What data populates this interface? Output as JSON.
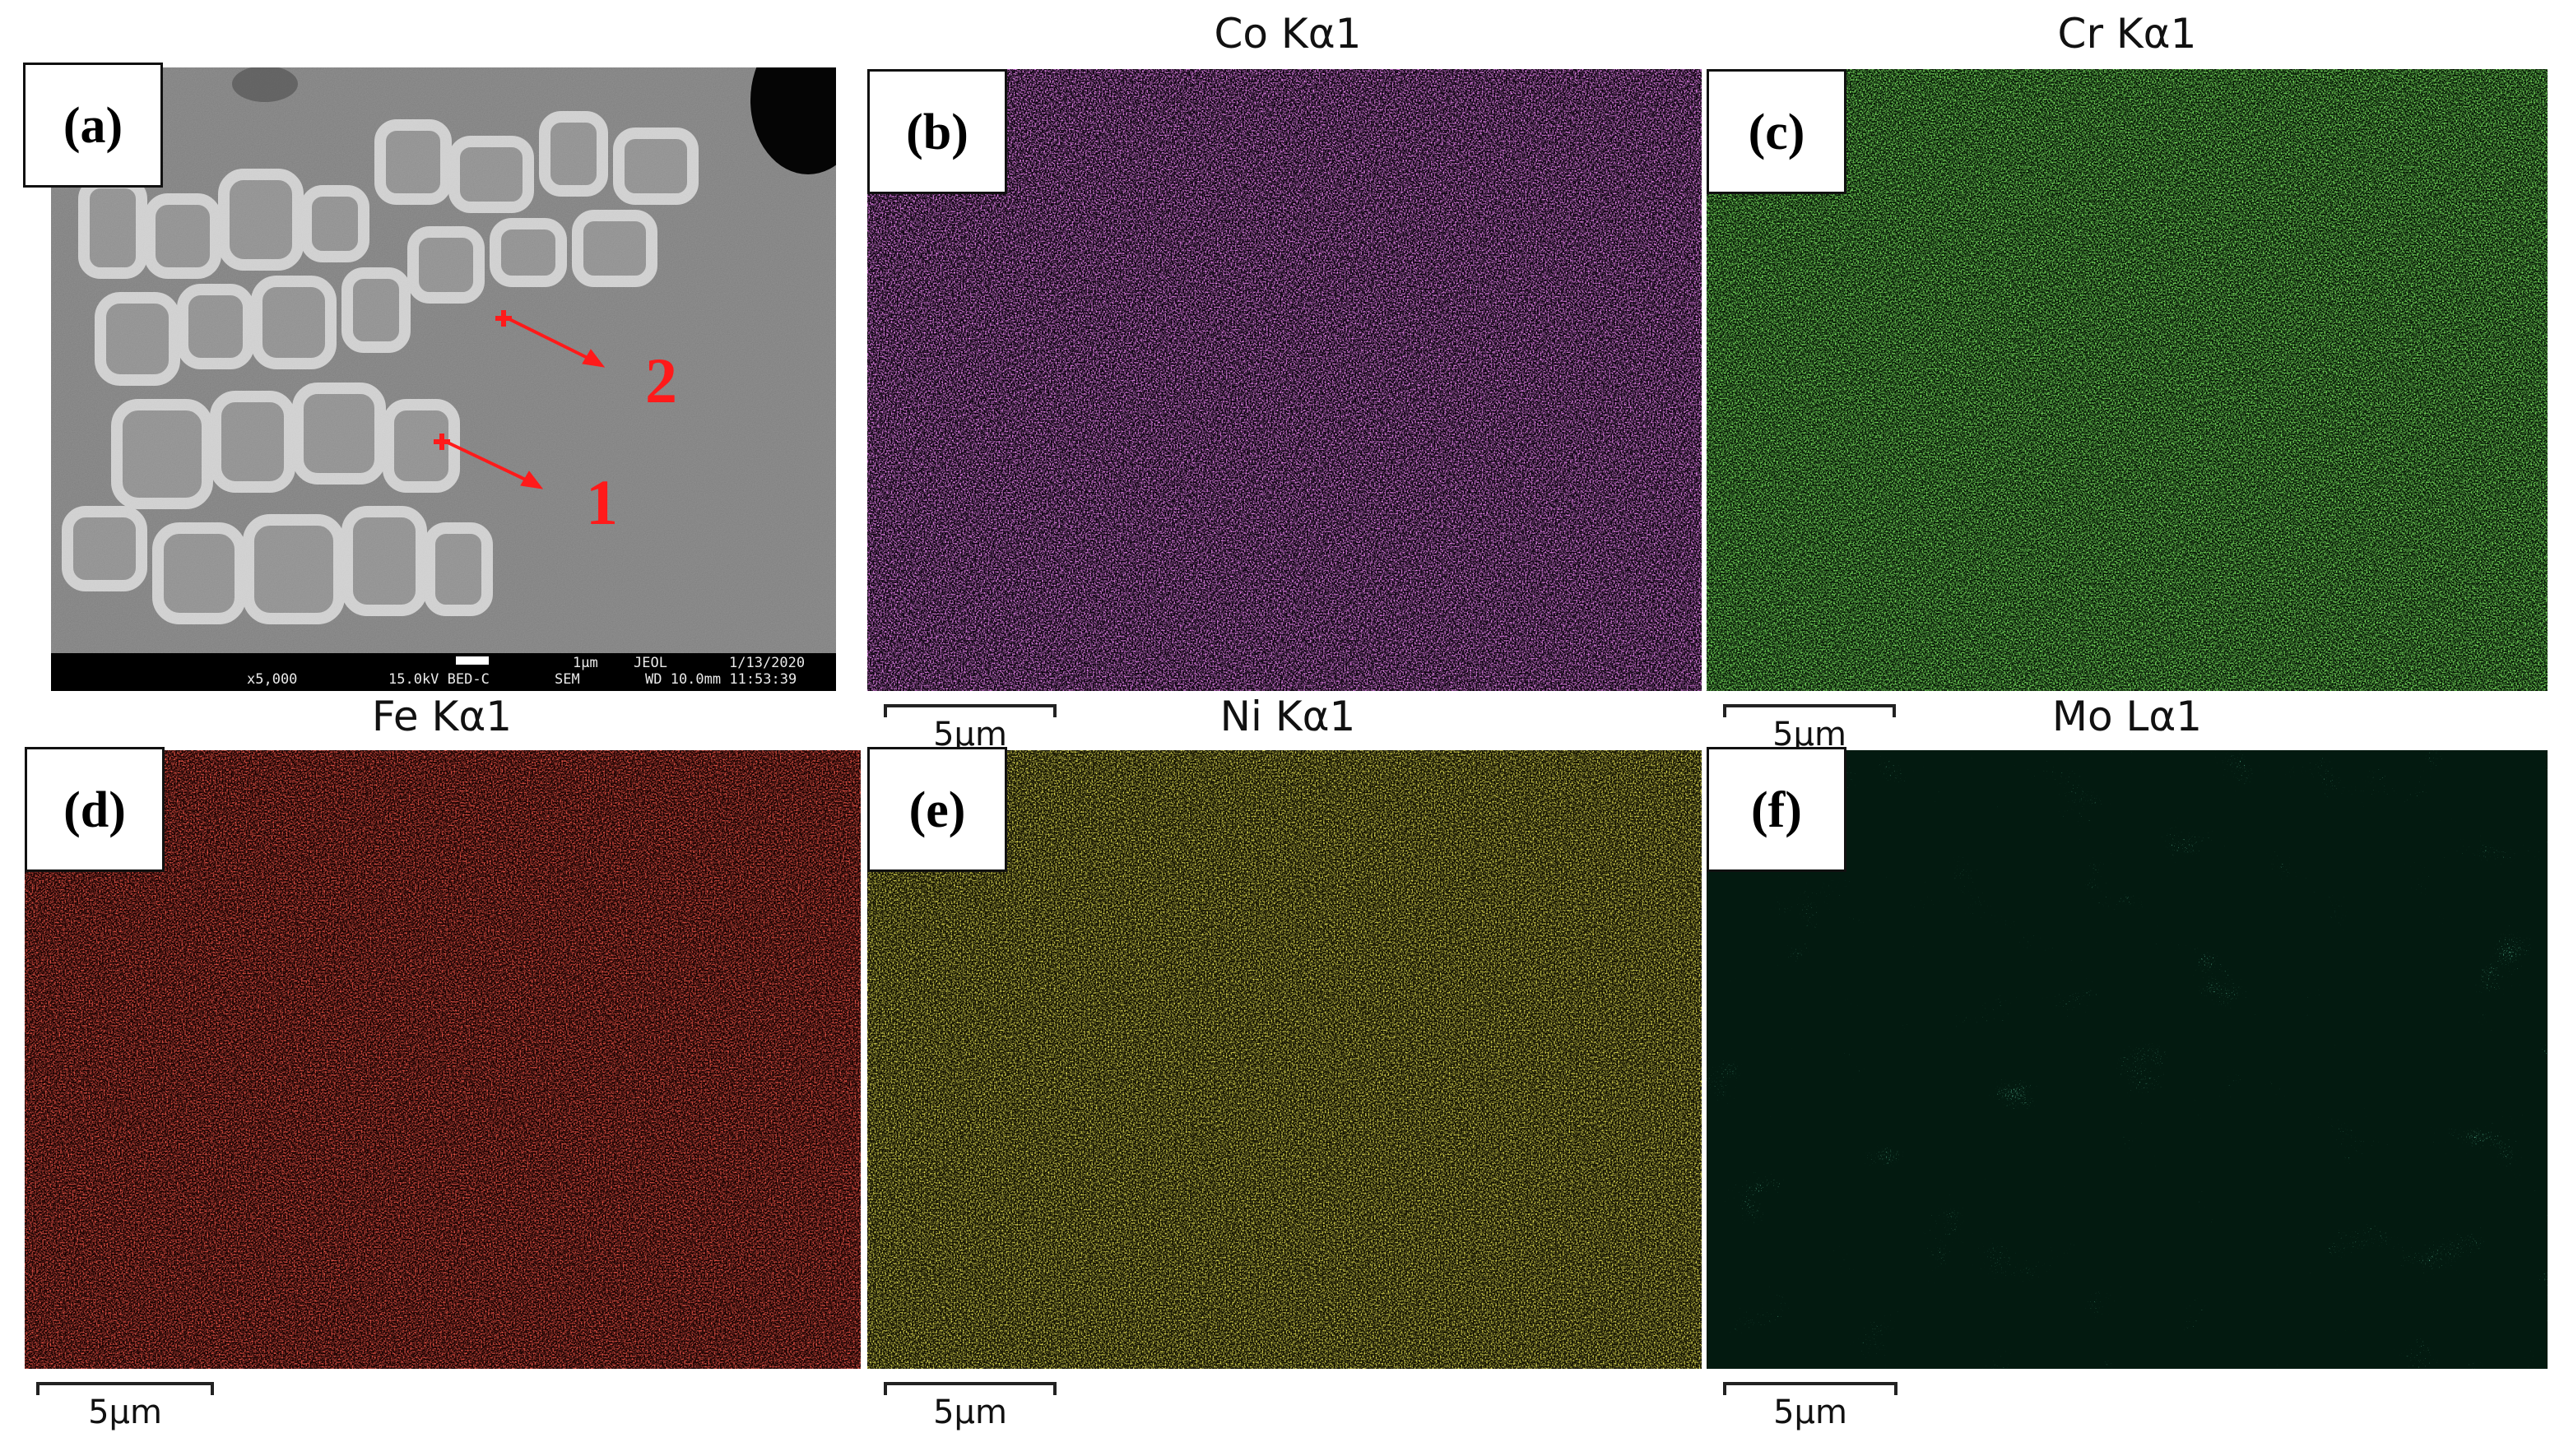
{
  "panels": {
    "a": {
      "label": "(a)",
      "sem": {
        "scale": "1µm",
        "vendor": "JEOL",
        "date": "1/13/2020",
        "magnification": "x5,000",
        "voltage": "15.0kV BED-C",
        "mode": "SEM",
        "working_distance": "WD 10.0mm 11:53:39"
      },
      "points": [
        "1",
        "2"
      ],
      "marker_color": "#ff1a1a"
    },
    "b": {
      "label": "(b)",
      "title": "Co Kα1",
      "scale": "5µm",
      "color": "#e040f0"
    },
    "c": {
      "label": "(c)",
      "title": "Cr Kα1",
      "scale": "5µm",
      "color": "#2fc21f"
    },
    "d": {
      "label": "(d)",
      "title": "Fe Kα1",
      "scale": "5µm",
      "color": "#e81a12"
    },
    "e": {
      "label": "(e)",
      "title": "Ni Kα1",
      "scale": "5µm",
      "color": "#d6d21a"
    },
    "f": {
      "label": "(f)",
      "title": "Mo Lα1",
      "scale": "5µm",
      "color": "#2fe08e"
    }
  }
}
